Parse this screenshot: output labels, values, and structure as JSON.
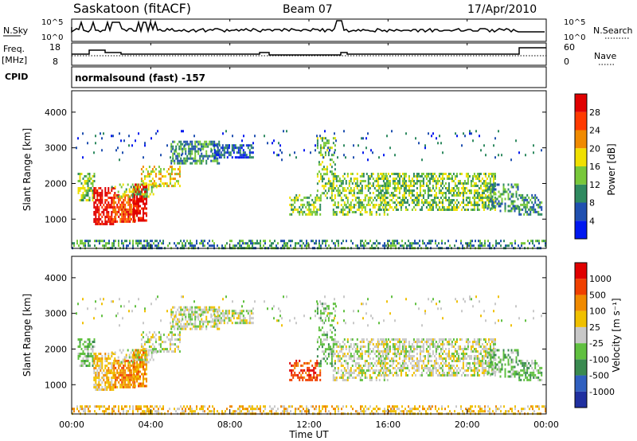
{
  "header": {
    "station": "Saskatoon (fitACF)",
    "beam": "Beam 07",
    "date": "17/Apr/2010"
  },
  "side_labels": {
    "nsky": "N.Sky",
    "nsearch": "N.Search",
    "freq": "Freq.",
    "freq_unit": "[MHz]",
    "nave": "Nave",
    "cpid": "CPID",
    "cpid_value": "normalsound (fast) -157"
  },
  "noise_axis": {
    "left_ticks": [
      "10^5",
      "10^0"
    ],
    "right_ticks": [
      "10^5",
      "10^0"
    ]
  },
  "freq_axis": {
    "left_ticks": [
      "18",
      "8"
    ],
    "right_ticks": [
      "60",
      "0"
    ]
  },
  "chart_data": [
    {
      "type": "heatmap",
      "name": "power",
      "ylabel": "Slant Range [km]",
      "ylim": [
        180,
        4600
      ],
      "yticks": [
        "4000",
        "3000",
        "2000",
        "1000"
      ],
      "colorbar_label": "Power [dB]",
      "colorbar_ticks": [
        "28",
        "24",
        "20",
        "16",
        "12",
        "8",
        "4"
      ],
      "colors": [
        "#0018f0",
        "#2050b0",
        "#2f8a60",
        "#78c83a",
        "#f0e000",
        "#f08a00",
        "#ff3a00",
        "#e00000"
      ]
    },
    {
      "type": "heatmap",
      "name": "velocity",
      "ylabel": "Slant Range [km]",
      "ylim": [
        180,
        4600
      ],
      "yticks": [
        "4000",
        "3000",
        "2000",
        "1000"
      ],
      "colorbar_label": "Velocity [m s⁻¹]",
      "colorbar_ticks": [
        "1000",
        "500",
        "100",
        "25",
        "-25",
        "-100",
        "-500",
        "-1000"
      ],
      "colors": [
        "#2030a0",
        "#3060c0",
        "#3a8a50",
        "#60c040",
        "#c8c8c8",
        "#f0c000",
        "#f08a00",
        "#f04000",
        "#e00000"
      ]
    }
  ],
  "x_axis": {
    "label": "Time UT",
    "ticks": [
      "00:00",
      "04:00",
      "08:00",
      "12:00",
      "16:00",
      "20:00",
      "00:00"
    ]
  }
}
